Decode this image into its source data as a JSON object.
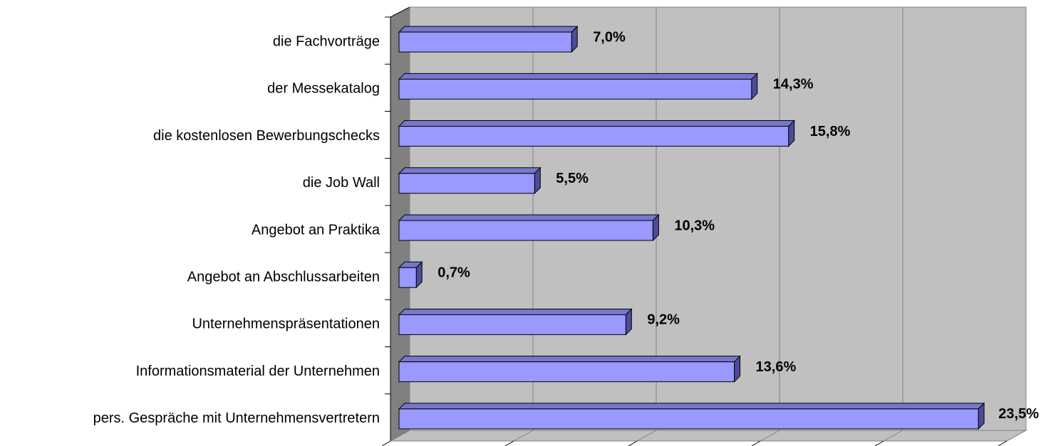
{
  "chart_data": {
    "type": "bar3d_horizontal",
    "categories": [
      "die Fachvorträge",
      "der Messekatalog",
      "die kostenlosen Bewerbungschecks",
      "die Job Wall",
      "Angebot an Praktika",
      "Angebot an Abschlussarbeiten",
      "Unternehmenspräsentationen",
      "Informationsmaterial der Unternehmen",
      "pers. Gespräche mit Unternehmensvertretern"
    ],
    "values": [
      7.0,
      14.3,
      15.8,
      5.5,
      10.3,
      0.7,
      9.2,
      13.6,
      23.5
    ],
    "value_labels": [
      "7,0%",
      "14,3%",
      "15,8%",
      "5,5%",
      "10,3%",
      "0,7%",
      "9,2%",
      "13,6%",
      "23,5%"
    ],
    "color": "#9999ff",
    "xlim": [
      0,
      25
    ],
    "xticks": [
      0,
      5,
      10,
      15,
      20,
      25
    ],
    "grid": true
  }
}
